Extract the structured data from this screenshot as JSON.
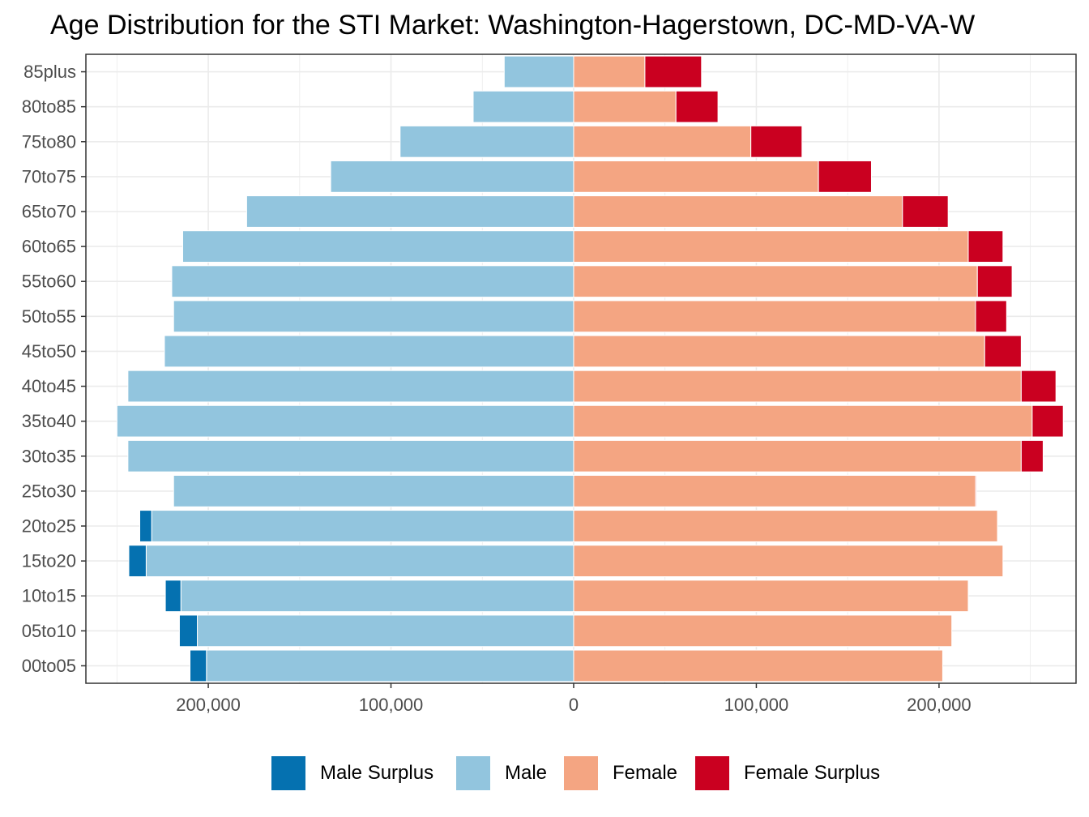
{
  "chart_data": {
    "type": "bar",
    "orientation": "horizontal-pyramid",
    "title": "Age Distribution for the STI Market: Washington-Hagerstown, DC-MD-VA-W",
    "xlabel": "",
    "ylabel": "",
    "categories": [
      "85plus",
      "80to85",
      "75to80",
      "70to75",
      "65to70",
      "60to65",
      "55to60",
      "50to55",
      "45to50",
      "40to45",
      "35to40",
      "30to35",
      "25to30",
      "20to25",
      "15to20",
      "10to15",
      "05to10",
      "00to05"
    ],
    "x_ticks": [
      {
        "value": -200000,
        "label": "200,000"
      },
      {
        "value": -100000,
        "label": "100,000"
      },
      {
        "value": 0,
        "label": "0"
      },
      {
        "value": 100000,
        "label": "100,000"
      },
      {
        "value": 200000,
        "label": "200,000"
      }
    ],
    "xlim": [
      -267000,
      275000
    ],
    "grid": true,
    "legend_position": "bottom",
    "series": [
      {
        "name": "Male Surplus",
        "color": "#0571b0",
        "values": [
          0,
          0,
          0,
          0,
          0,
          0,
          0,
          0,
          0,
          0,
          0,
          0,
          0,
          6500,
          9500,
          8500,
          9800,
          9000
        ]
      },
      {
        "name": "Male",
        "color": "#92c5de",
        "values": [
          38000,
          55000,
          95000,
          133000,
          179000,
          214000,
          220000,
          219000,
          224000,
          244000,
          250000,
          244000,
          219000,
          231000,
          234000,
          215000,
          206000,
          201000
        ]
      },
      {
        "name": "Female",
        "color": "#f4a582",
        "values": [
          39000,
          56000,
          97000,
          134000,
          180000,
          216000,
          221000,
          220000,
          225000,
          245000,
          251000,
          245000,
          220000,
          232000,
          235000,
          216000,
          207000,
          202000
        ]
      },
      {
        "name": "Female Surplus",
        "color": "#ca0020",
        "values": [
          31000,
          23000,
          28000,
          29000,
          25000,
          19000,
          19000,
          17000,
          20000,
          19000,
          17000,
          12000,
          500,
          0,
          0,
          0,
          0,
          0
        ]
      }
    ]
  }
}
